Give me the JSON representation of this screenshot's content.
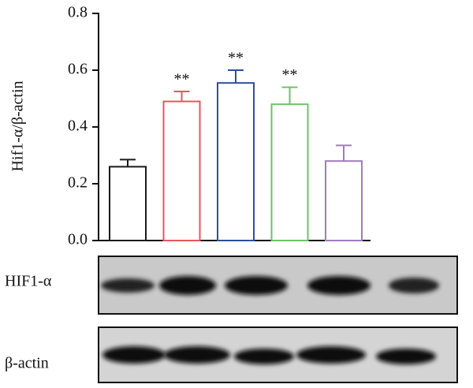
{
  "chart_data": {
    "type": "bar",
    "y_label": "Hif1-α/β-actin",
    "categories": [
      null,
      null,
      null,
      null,
      null
    ],
    "values": [
      0.26,
      0.49,
      0.555,
      0.48,
      0.28
    ],
    "errors": [
      0.025,
      0.035,
      0.045,
      0.06,
      0.055
    ],
    "colors": [
      "#1a1a1a",
      "#e8545e",
      "#2c4ea0",
      "#6cc26a",
      "#a07cc0"
    ],
    "significance": [
      null,
      "**",
      "**",
      "**",
      null
    ],
    "ylim": [
      0,
      0.8
    ],
    "yticks": [
      {
        "value": 0,
        "label": "0.0"
      },
      0.2,
      0.4,
      0.6,
      0.8
    ]
  },
  "blots": [
    {
      "label": "HIF1-α"
    },
    {
      "label": "β-actin"
    }
  ]
}
